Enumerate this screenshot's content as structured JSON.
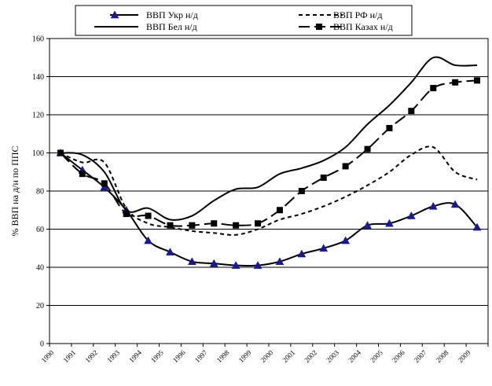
{
  "chart_data": {
    "type": "line",
    "title": "",
    "xlabel": "",
    "ylabel": "%  ВВП на д/н по ППС",
    "ylim": [
      0,
      160
    ],
    "yticks": [
      0,
      20,
      40,
      60,
      80,
      100,
      120,
      140,
      160
    ],
    "grid": "horizontal",
    "legend_position": "top",
    "x": [
      "1990",
      "1991",
      "1992",
      "1993",
      "1994",
      "1995",
      "1996",
      "1997",
      "1998",
      "1999",
      "2000",
      "2001",
      "2002",
      "2003",
      "2004",
      "2005",
      "2006",
      "2007",
      "2008",
      "2009"
    ],
    "series": [
      {
        "name": "ВВП Укр н/д",
        "style": "solid-triangle",
        "color": "#000000",
        "values": [
          100,
          91,
          82,
          70,
          54,
          48,
          43,
          42,
          41,
          41,
          43,
          47,
          50,
          54,
          62,
          63,
          67,
          72,
          73,
          61
        ]
      },
      {
        "name": "ВВП РФ н/д",
        "style": "dashed",
        "color": "#000000",
        "values": [
          100,
          95,
          95,
          71,
          63,
          61,
          59,
          58,
          57,
          60,
          65,
          68,
          72,
          77,
          83,
          90,
          99,
          103,
          90,
          86
        ]
      },
      {
        "name": "ВВП Бел н/д",
        "style": "solid",
        "color": "#000000",
        "values": [
          100,
          99,
          90,
          70,
          71,
          65,
          67,
          75,
          81,
          82,
          89,
          92,
          96,
          103,
          115,
          125,
          137,
          150,
          146,
          146
        ]
      },
      {
        "name": "ВВП Казах н/д",
        "style": "longdash-square",
        "color": "#000000",
        "values": [
          100,
          89,
          84,
          68,
          67,
          62,
          62,
          63,
          62,
          63,
          70,
          80,
          87,
          93,
          102,
          113,
          122,
          134,
          137,
          138
        ]
      }
    ]
  }
}
